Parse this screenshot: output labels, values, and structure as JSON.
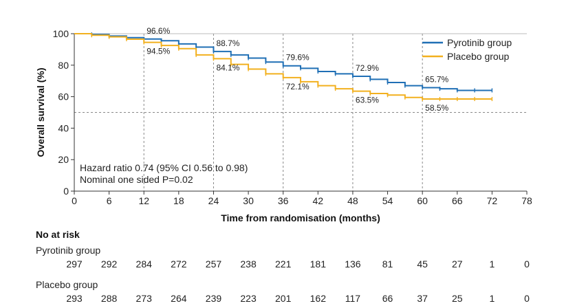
{
  "chart_data": {
    "type": "line",
    "xlabel": "Time from randomisation (months)",
    "ylabel": "Overall survival (%)",
    "xlim": [
      0,
      78
    ],
    "ylim": [
      0,
      100
    ],
    "x_ticks": [
      0,
      6,
      12,
      18,
      24,
      30,
      36,
      42,
      48,
      54,
      60,
      66,
      72,
      78
    ],
    "y_ticks": [
      0,
      20,
      40,
      60,
      80,
      100
    ],
    "grid": false,
    "legend_position": "top-right",
    "reference_line_y": 50,
    "series": [
      {
        "name": "Pyrotinib group",
        "color": "#1f6fb5",
        "x": [
          0,
          3,
          6,
          9,
          12,
          15,
          18,
          21,
          24,
          27,
          30,
          33,
          36,
          39,
          42,
          45,
          48,
          51,
          54,
          57,
          60,
          63,
          66,
          69,
          72
        ],
        "y": [
          100,
          99.5,
          98.5,
          97.5,
          96.6,
          95.5,
          93.5,
          91.5,
          88.7,
          86.5,
          84.5,
          82,
          79.6,
          78,
          76,
          74.5,
          72.9,
          71,
          69,
          67,
          65.7,
          65,
          64,
          64,
          64
        ]
      },
      {
        "name": "Placebo group",
        "color": "#f2b01e",
        "x": [
          0,
          3,
          6,
          9,
          12,
          15,
          18,
          21,
          24,
          27,
          30,
          33,
          36,
          39,
          42,
          45,
          48,
          51,
          54,
          57,
          60,
          63,
          66,
          69,
          72
        ],
        "y": [
          100,
          99,
          98,
          96.5,
          94.5,
          92.5,
          90.5,
          86.5,
          84.1,
          80.5,
          77.5,
          74.5,
          72.1,
          69.5,
          67,
          65,
          63.5,
          62,
          61,
          59.5,
          58.5,
          58.5,
          58.5,
          58.5,
          58.5
        ]
      }
    ],
    "annotations": [
      {
        "text": "96.6%",
        "x": 12,
        "series": 0
      },
      {
        "text": "94.5%",
        "x": 12,
        "series": 1
      },
      {
        "text": "88.7%",
        "x": 24,
        "series": 0
      },
      {
        "text": "84.1%",
        "x": 24,
        "series": 1
      },
      {
        "text": "79.6%",
        "x": 36,
        "series": 0
      },
      {
        "text": "72.1%",
        "x": 36,
        "series": 1
      },
      {
        "text": "72.9%",
        "x": 48,
        "series": 0
      },
      {
        "text": "63.5%",
        "x": 48,
        "series": 1
      },
      {
        "text": "65.7%",
        "x": 60,
        "series": 0
      },
      {
        "text": "58.5%",
        "x": 60,
        "series": 1
      }
    ],
    "stats": [
      "Hazard ratio 0.74 (95% CI 0.56 to 0.98)",
      "Nominal one sided P=0.02"
    ],
    "at_risk": {
      "title": "No at risk",
      "groups": [
        {
          "label": "Pyrotinib group",
          "values": [
            297,
            292,
            284,
            272,
            257,
            238,
            221,
            181,
            136,
            81,
            45,
            27,
            1,
            0
          ]
        },
        {
          "label": "Placebo group",
          "values": [
            293,
            288,
            273,
            264,
            239,
            223,
            201,
            162,
            117,
            66,
            37,
            25,
            1,
            0
          ]
        }
      ]
    }
  }
}
